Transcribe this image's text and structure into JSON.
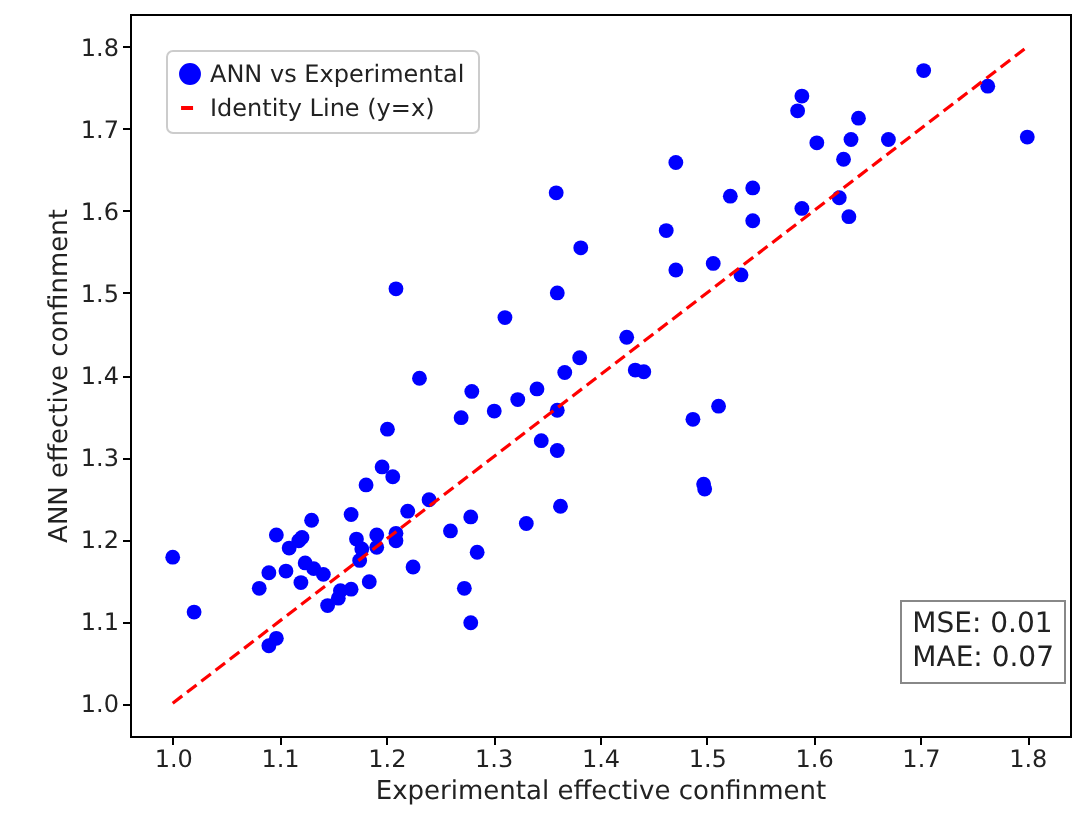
{
  "chart_data": {
    "type": "scatter",
    "xlabel": "Experimental effective confinment",
    "ylabel": "ANN  effective confinment",
    "xlim": [
      0.96,
      1.84
    ],
    "ylim": [
      0.96,
      1.84
    ],
    "xticks": [
      {
        "value": 1.0,
        "label": "1.0"
      },
      1.1,
      1.2,
      1.3,
      1.4,
      1.5,
      1.6,
      1.7,
      1.8
    ],
    "yticks": [
      {
        "value": 1.0,
        "label": "1.0"
      },
      1.1,
      1.2,
      1.3,
      1.4,
      1.5,
      1.6,
      1.7,
      1.8
    ],
    "grid": false,
    "legend": "top left",
    "annotations": [
      "MSE: 0.01",
      "MAE: 0.07"
    ],
    "series": [
      {
        "name": "ANN vs Experimental",
        "marker": "circle",
        "color": "#0000ff",
        "x": [
          1.0,
          1.02,
          1.081,
          1.09,
          1.097,
          1.09,
          1.097,
          1.106,
          1.109,
          1.118,
          1.121,
          1.12,
          1.124,
          1.13,
          1.132,
          1.141,
          1.145,
          1.155,
          1.157,
          1.167,
          1.167,
          1.172,
          1.175,
          1.177,
          1.181,
          1.184,
          1.191,
          1.191,
          1.196,
          1.201,
          1.206,
          1.209,
          1.209,
          1.22,
          1.225,
          1.24,
          1.26,
          1.27,
          1.273,
          1.279,
          1.279,
          1.28,
          1.285,
          1.301,
          1.323,
          1.331,
          1.341,
          1.345,
          1.36,
          1.36,
          1.363,
          1.359,
          1.382,
          1.209,
          1.36,
          1.311,
          1.381,
          1.367,
          1.231,
          1.703,
          1.763,
          1.8,
          1.589,
          1.585,
          1.642,
          1.603,
          1.635,
          1.67,
          1.628,
          1.471,
          1.522,
          1.543,
          1.543,
          1.589,
          1.624,
          1.633,
          1.462,
          1.471,
          1.506,
          1.532,
          1.425,
          1.433,
          1.441,
          1.511,
          1.487,
          1.497,
          1.498
        ],
        "values": [
          1.178,
          1.111,
          1.14,
          1.159,
          1.205,
          1.07,
          1.079,
          1.161,
          1.189,
          1.198,
          1.202,
          1.147,
          1.171,
          1.223,
          1.164,
          1.157,
          1.119,
          1.128,
          1.137,
          1.139,
          1.23,
          1.2,
          1.174,
          1.188,
          1.266,
          1.148,
          1.19,
          1.205,
          1.288,
          1.334,
          1.276,
          1.198,
          1.207,
          1.234,
          1.166,
          1.248,
          1.21,
          1.348,
          1.14,
          1.227,
          1.098,
          1.38,
          1.184,
          1.356,
          1.37,
          1.219,
          1.383,
          1.32,
          1.357,
          1.308,
          1.24,
          1.622,
          1.555,
          1.505,
          1.5,
          1.47,
          1.421,
          1.403,
          1.396,
          1.771,
          1.752,
          1.69,
          1.74,
          1.722,
          1.713,
          1.683,
          1.687,
          1.687,
          1.663,
          1.659,
          1.618,
          1.628,
          1.588,
          1.603,
          1.616,
          1.593,
          1.576,
          1.528,
          1.536,
          1.522,
          1.446,
          1.406,
          1.404,
          1.362,
          1.346,
          1.267,
          1.261
        ]
      },
      {
        "name": "Identity Line (y=x)",
        "type": "line",
        "line_style": "dashed",
        "color": "#ff0000",
        "x": [
          1.0,
          1.8
        ],
        "values": [
          1.0,
          1.8
        ]
      }
    ]
  }
}
